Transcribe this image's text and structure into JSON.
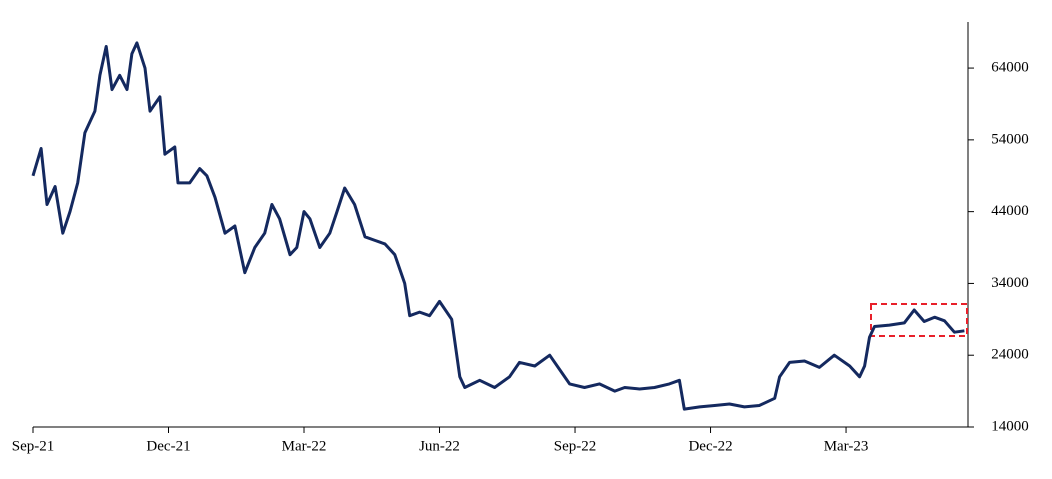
{
  "chart_data": {
    "type": "line",
    "color": "#14295f",
    "x": [
      0,
      0.18,
      0.31,
      0.49,
      0.66,
      0.82,
      0.99,
      1.15,
      1.37,
      1.48,
      1.62,
      1.75,
      1.92,
      2.08,
      2.19,
      2.3,
      2.48,
      2.59,
      2.81,
      2.92,
      3.14,
      3.21,
      3.47,
      3.69,
      3.85,
      4.03,
      4.25,
      4.47,
      4.69,
      4.91,
      5.13,
      5.29,
      5.46,
      5.69,
      5.84,
      6.0,
      6.13,
      6.35,
      6.57,
      6.73,
      6.9,
      7.12,
      7.35,
      7.57,
      7.79,
      8.01,
      8.23,
      8.34,
      8.56,
      8.78,
      9.0,
      9.27,
      9.45,
      9.56,
      9.89,
      10.22,
      10.55,
      10.77,
      11.11,
      11.44,
      11.66,
      11.88,
      12.21,
      12.54,
      12.88,
      13.1,
      13.43,
      13.76,
      14.09,
      14.31,
      14.42,
      14.76,
      15.09,
      15.42,
      15.75,
      16.08,
      16.42,
      16.53,
      16.75,
      17.08,
      17.41,
      17.74,
      18.08,
      18.3,
      18.41,
      18.52,
      18.63,
      18.96,
      19.29,
      19.51,
      19.73,
      19.96,
      20.18,
      20.4,
      20.62
    ],
    "values": [
      49000,
      52800,
      45000,
      47500,
      41000,
      44000,
      48000,
      55000,
      58000,
      63000,
      67000,
      61000,
      63000,
      61000,
      66000,
      67500,
      64000,
      58000,
      60000,
      52000,
      53000,
      48000,
      48000,
      50000,
      49000,
      46000,
      41000,
      42000,
      35500,
      39000,
      41000,
      45000,
      43000,
      38000,
      39000,
      44000,
      43000,
      39000,
      41000,
      44000,
      47300,
      45000,
      40500,
      40000,
      39500,
      38000,
      34000,
      29500,
      30000,
      29500,
      31500,
      29000,
      21000,
      19500,
      20500,
      19500,
      21000,
      23000,
      22500,
      24000,
      22000,
      20000,
      19500,
      20000,
      19000,
      19500,
      19300,
      19500,
      20000,
      20500,
      16500,
      16800,
      17000,
      17200,
      16800,
      17000,
      18000,
      21000,
      23000,
      23200,
      22300,
      24000,
      22500,
      21000,
      22500,
      26500,
      28000,
      28200,
      28500,
      30300,
      28700,
      29300,
      28800,
      27200,
      27400
    ],
    "xlim": [
      0,
      20.7
    ],
    "xticks": [
      {
        "value": 0,
        "label": "Sep-21"
      },
      {
        "value": 3,
        "label": "Dec-21"
      },
      {
        "value": 6,
        "label": "Mar-22"
      },
      {
        "value": 9,
        "label": "Jun-22"
      },
      {
        "value": 12,
        "label": "Sep-22"
      },
      {
        "value": 15,
        "label": "Dec-22"
      },
      {
        "value": 18,
        "label": "Mar-23"
      }
    ],
    "ylim": [
      14000,
      70000
    ],
    "yticks": [
      14000,
      24000,
      34000,
      44000,
      54000,
      64000
    ]
  }
}
